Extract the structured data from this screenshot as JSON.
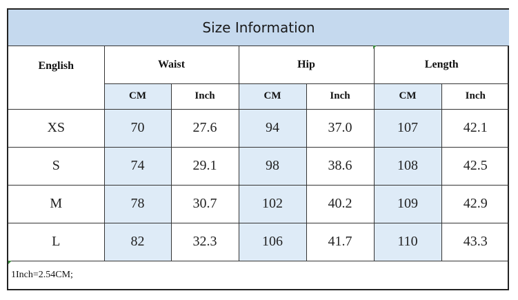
{
  "title": "Size Information",
  "headers": {
    "size_label": "English",
    "groups": [
      "Waist",
      "Hip",
      "Length"
    ]
  },
  "units": [
    "CM",
    "Inch",
    "CM",
    "Inch",
    "CM",
    "Inch"
  ],
  "rows": [
    {
      "size": "XS",
      "values": [
        "70",
        "27.6",
        "94",
        "37.0",
        "107",
        "42.1"
      ]
    },
    {
      "size": "S",
      "values": [
        "74",
        "29.1",
        "98",
        "38.6",
        "108",
        "42.5"
      ]
    },
    {
      "size": "M",
      "values": [
        "78",
        "30.7",
        "102",
        "40.2",
        "109",
        "42.9"
      ]
    },
    {
      "size": "L",
      "values": [
        "82",
        "32.3",
        "106",
        "41.7",
        "110",
        "43.3"
      ]
    }
  ],
  "note": "1Inch=2.54CM;",
  "colors": {
    "title_bg": "#c5d9ee",
    "cm_bg": "#deebf7",
    "marker": "#3c8a3c"
  }
}
